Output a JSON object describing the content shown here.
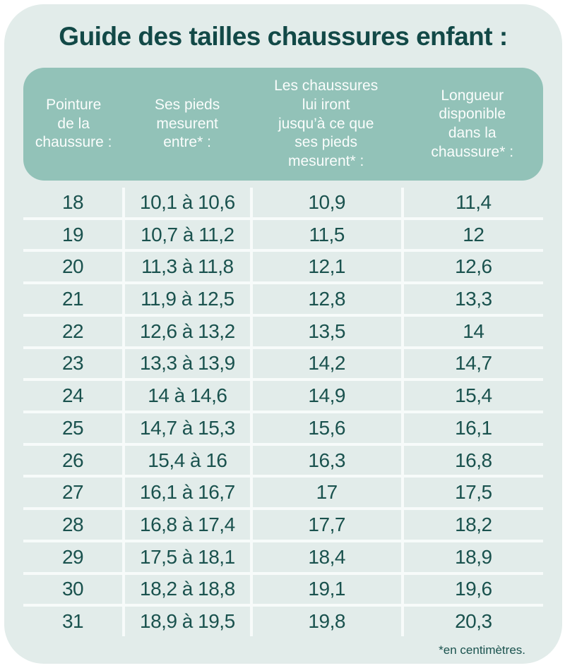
{
  "title": "Guide des tailles chaussures enfant :",
  "table": {
    "headers": [
      "Pointure\nde la\nchaussure :",
      "Ses pieds\nmesurent\nentre* :",
      "Les chaussures\nlui iront\njusqu’à ce que\nses pieds\nmesurent* :",
      "Longueur\ndisponible\ndans la\nchaussure* :"
    ],
    "rows": [
      [
        "18",
        "10,1 à 10,6",
        "10,9",
        "11,4"
      ],
      [
        "19",
        "10,7 à 11,2",
        "11,5",
        "12"
      ],
      [
        "20",
        "11,3 à 11,8",
        "12,1",
        "12,6"
      ],
      [
        "21",
        "11,9 à 12,5",
        "12,8",
        "13,3"
      ],
      [
        "22",
        "12,6 à 13,2",
        "13,5",
        "14"
      ],
      [
        "23",
        "13,3 à 13,9",
        "14,2",
        "14,7"
      ],
      [
        "24",
        "14 à 14,6",
        "14,9",
        "15,4"
      ],
      [
        "25",
        "14,7 à 15,3",
        "15,6",
        "16,1"
      ],
      [
        "26",
        "15,4 à 16",
        "16,3",
        "16,8"
      ],
      [
        "27",
        "16,1 à 16,7",
        "17",
        "17,5"
      ],
      [
        "28",
        "16,8 à 17,4",
        "17,7",
        "18,2"
      ],
      [
        "29",
        "17,5 à 18,1",
        "18,4",
        "18,9"
      ],
      [
        "30",
        "18,2 à 18,8",
        "19,1",
        "19,6"
      ],
      [
        "31",
        "18,9 à 19,5",
        "19,8",
        "20,3"
      ]
    ],
    "footnote": "*en centimètres."
  },
  "chart_data": {
    "type": "table",
    "title": "Guide des tailles chaussures enfant :",
    "columns": [
      "Pointure de la chaussure :",
      "Ses pieds mesurent entre* :",
      "Les chaussures lui iront jusqu’à ce que ses pieds mesurent* :",
      "Longueur disponible dans la chaussure* :"
    ],
    "rows": [
      [
        "18",
        "10,1 à 10,6",
        "10,9",
        "11,4"
      ],
      [
        "19",
        "10,7 à 11,2",
        "11,5",
        "12"
      ],
      [
        "20",
        "11,3 à 11,8",
        "12,1",
        "12,6"
      ],
      [
        "21",
        "11,9 à 12,5",
        "12,8",
        "13,3"
      ],
      [
        "22",
        "12,6 à 13,2",
        "13,5",
        "14"
      ],
      [
        "23",
        "13,3 à 13,9",
        "14,2",
        "14,7"
      ],
      [
        "24",
        "14 à 14,6",
        "14,9",
        "15,4"
      ],
      [
        "25",
        "14,7 à 15,3",
        "15,6",
        "16,1"
      ],
      [
        "26",
        "15,4 à 16",
        "16,3",
        "16,8"
      ],
      [
        "27",
        "16,1 à 16,7",
        "17",
        "17,5"
      ],
      [
        "28",
        "16,8 à 17,4",
        "17,7",
        "18,2"
      ],
      [
        "29",
        "17,5 à 18,1",
        "18,4",
        "18,9"
      ],
      [
        "30",
        "18,2 à 18,8",
        "19,1",
        "19,6"
      ],
      [
        "31",
        "18,9 à 19,5",
        "19,8",
        "20,3"
      ]
    ],
    "note": "*en centimètres.",
    "unit": "cm"
  },
  "colors": {
    "page_background": "#ffffff",
    "card_background": "#e2ecea",
    "header_background": "#92c2b8",
    "header_text": "#fafdfc",
    "title_text": "#124947",
    "body_text": "#1a524e",
    "divider": "#f7fbfa"
  }
}
